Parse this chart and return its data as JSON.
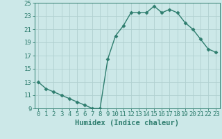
{
  "x": [
    0,
    1,
    2,
    3,
    4,
    5,
    6,
    7,
    8,
    9,
    10,
    11,
    12,
    13,
    14,
    15,
    16,
    17,
    18,
    19,
    20,
    21,
    22,
    23
  ],
  "y": [
    13,
    12,
    11.5,
    11,
    10.5,
    10,
    9.5,
    9,
    9,
    16.5,
    20,
    21.5,
    23.5,
    23.5,
    23.5,
    24.5,
    23.5,
    24,
    23.5,
    22,
    21,
    19.5,
    18,
    17.5
  ],
  "xlabel": "Humidex (Indice chaleur)",
  "ylim": [
    9,
    25
  ],
  "xlim": [
    -0.5,
    23.5
  ],
  "yticks": [
    9,
    11,
    13,
    15,
    17,
    19,
    21,
    23,
    25
  ],
  "xticks": [
    0,
    1,
    2,
    3,
    4,
    5,
    6,
    7,
    8,
    9,
    10,
    11,
    12,
    13,
    14,
    15,
    16,
    17,
    18,
    19,
    20,
    21,
    22,
    23
  ],
  "xtick_labels": [
    "0",
    "1",
    "2",
    "3",
    "4",
    "5",
    "6",
    "7",
    "8",
    "9",
    "10",
    "11",
    "12",
    "13",
    "14",
    "15",
    "16",
    "17",
    "18",
    "19",
    "20",
    "21",
    "22",
    "23"
  ],
  "line_color": "#2e7d6e",
  "marker": "D",
  "marker_size": 2.5,
  "bg_color": "#cce8e8",
  "grid_color": "#b0d0d0",
  "tick_color": "#2e7d6e",
  "label_color": "#2e7d6e",
  "xlabel_fontsize": 7.5,
  "tick_fontsize": 6.5
}
